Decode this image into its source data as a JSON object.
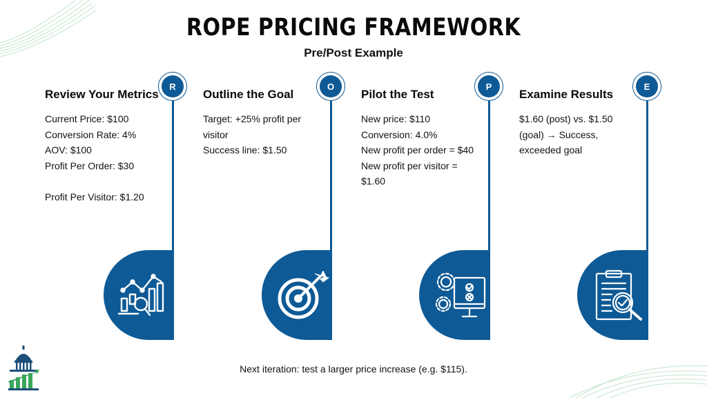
{
  "header": {
    "title": "ROPE PRICING FRAMEWORK",
    "subtitle": "Pre/Post Example"
  },
  "steps": [
    {
      "letter": "R",
      "title": "Review Your Metrics",
      "lines": [
        "Current Price: $100",
        "Conversion Rate: 4%",
        "AOV: $100",
        "Profit Per Order: $30",
        "",
        "Profit Per Visitor: $1.20"
      ],
      "icon": "analytics-chart-icon"
    },
    {
      "letter": "O",
      "title": "Outline the Goal",
      "lines": [
        "Target: +25% profit per",
        "visitor",
        "Success line: $1.50"
      ],
      "icon": "target-icon"
    },
    {
      "letter": "P",
      "title": "Pilot the Test",
      "lines": [
        "New price: $110",
        "Conversion: 4.0%",
        "New profit per order = $40",
        "New profit per visitor =",
        "$1.60"
      ],
      "icon": "monitor-gears-icon"
    },
    {
      "letter": "E",
      "title": "Examine Results",
      "lines": [
        "$1.60 (post) vs. $1.50",
        "(goal) → Success,",
        "exceeded goal"
      ],
      "icon": "clipboard-check-icon"
    }
  ],
  "footer": {
    "note": "Next iteration: test a larger price increase (e.g. $115)."
  },
  "colors": {
    "accent": "#0e5a96",
    "logo_green": "#3aa65a",
    "deco_green": "#bfe6cc"
  }
}
